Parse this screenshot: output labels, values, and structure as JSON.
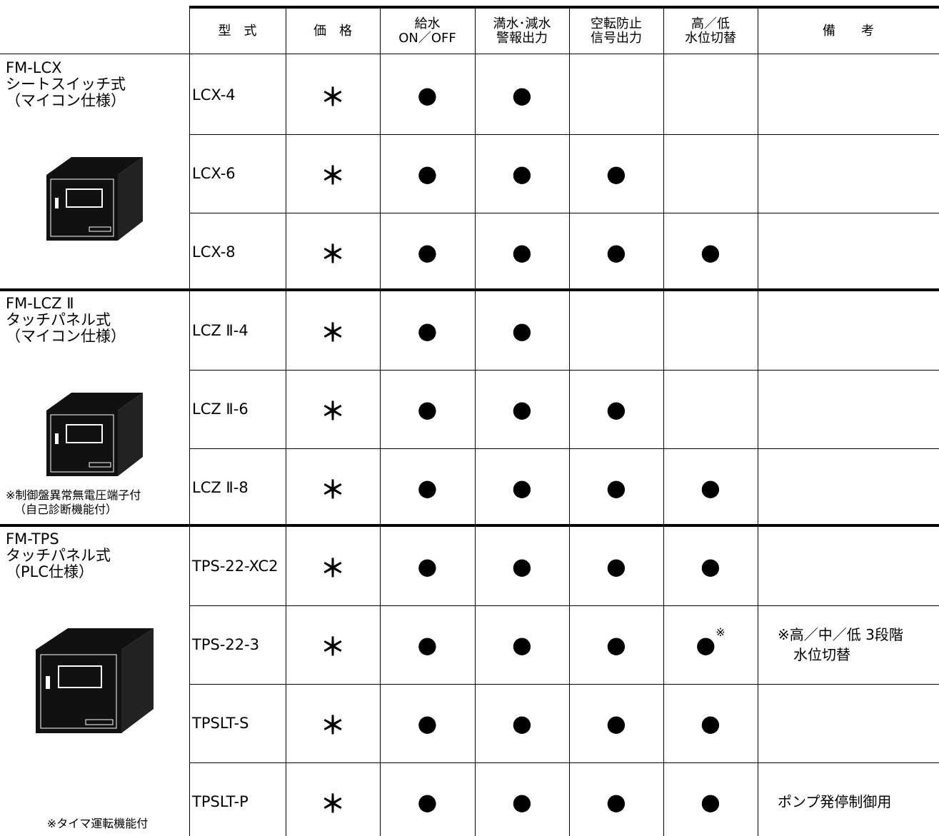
{
  "header": {
    "columns": [
      [
        "型　式"
      ],
      [
        "価　格"
      ],
      [
        "給水",
        "ON／OFF"
      ],
      [
        "満水･減水",
        "警報出力"
      ],
      [
        "空転防止",
        "信号出力"
      ],
      [
        "高／低",
        "水位切替"
      ],
      [
        "備　　考"
      ]
    ]
  },
  "groups": [
    {
      "name": [
        "FM-LCX",
        "シートスイッチ式",
        "（マイコン仕様）"
      ],
      "rows": [
        {
          "cells": [
            "LCX-4",
            "＊",
            "●",
            "●",
            null,
            null,
            null
          ]
        },
        {
          "cells": [
            "LCX-6",
            "＊",
            "●",
            "●",
            "●",
            null,
            null
          ]
        },
        {
          "cells": [
            "LCX-8",
            "＊",
            "●",
            "●",
            "●",
            "●",
            null
          ]
        }
      ]
    },
    {
      "name": [
        "FM-LCZ Ⅱ",
        "タッチパネル式",
        "（マイコン仕様）"
      ],
      "note": [
        "※制御盤異常無電圧端子付",
        "（自己診断機能付）"
      ],
      "rows": [
        {
          "cells": [
            "LCZ Ⅱ-4",
            "＊",
            "●",
            "●",
            null,
            null,
            null
          ]
        },
        {
          "cells": [
            "LCZ Ⅱ-6",
            "＊",
            "●",
            "●",
            "●",
            null,
            null
          ]
        },
        {
          "cells": [
            "LCZ Ⅱ-8",
            "＊",
            "●",
            "●",
            "●",
            "●",
            null
          ]
        }
      ]
    },
    {
      "name": [
        "FM-TPS",
        "タッチパネル式",
        "（PLC仕様）"
      ],
      "note": [
        "※タイマ運転機能付"
      ],
      "rows": [
        {
          "cells": [
            "TPS-22-XC2",
            "＊",
            "●",
            "●",
            "●",
            "●",
            null
          ]
        },
        {
          "cells": [
            "TPS-22-3",
            "＊",
            "●",
            "●",
            "●",
            {
              "text": "●",
              "sup": "※"
            },
            [
              "※高／中／低 3段階",
              "水位切替"
            ]
          ]
        },
        {
          "cells": [
            "TPSLT-S",
            "＊",
            "●",
            "●",
            "●",
            "●",
            null
          ]
        },
        {
          "cells": [
            "TPSLT-P",
            "＊",
            "●",
            "●",
            "●",
            "●",
            [
              "ポンプ発停制御用"
            ]
          ]
        }
      ]
    }
  ]
}
